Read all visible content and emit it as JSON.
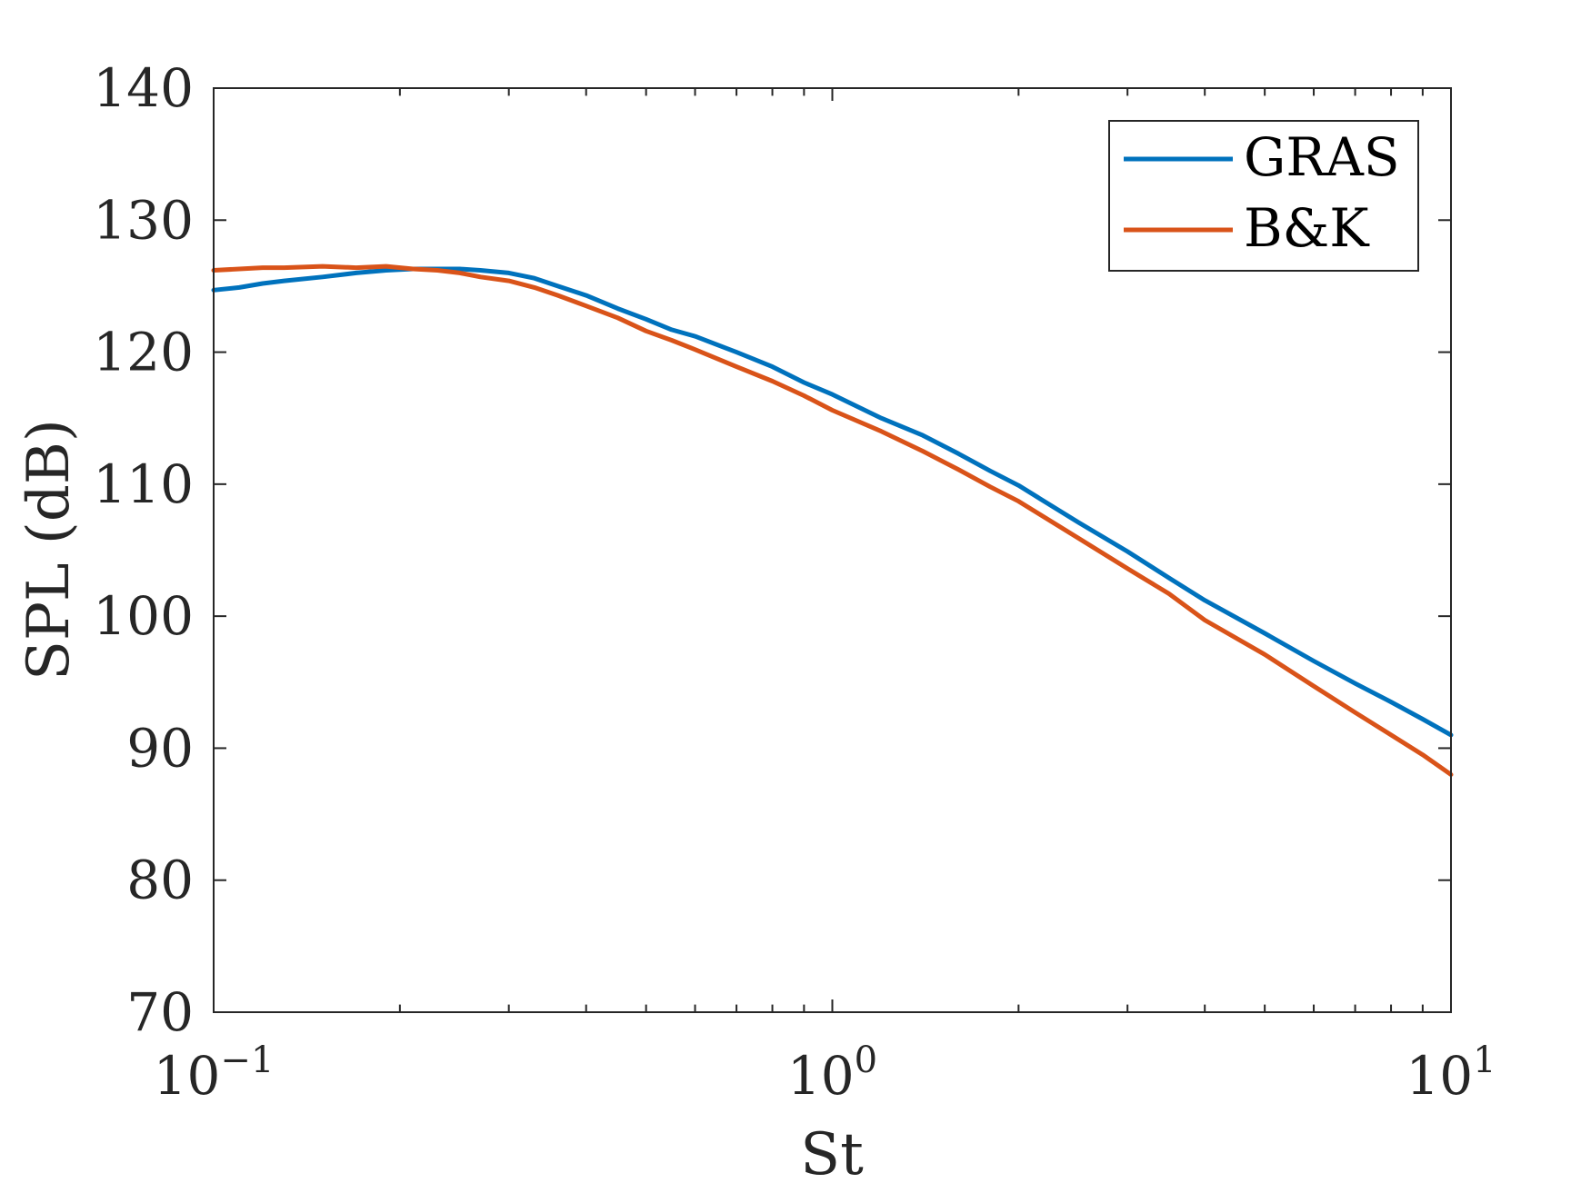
{
  "chart_data": {
    "type": "line",
    "title": "",
    "xlabel": "St",
    "ylabel": "SPL (dB)",
    "xscale": "log",
    "xlim": [
      0.1,
      10
    ],
    "ylim": [
      70,
      140
    ],
    "grid": false,
    "legend_position": "top-right",
    "x_ticks": [
      {
        "value": 0.1,
        "base": "10",
        "exp": "−1"
      },
      {
        "value": 1,
        "base": "10",
        "exp": "0"
      },
      {
        "value": 10,
        "base": "10",
        "exp": "1"
      }
    ],
    "y_ticks": [
      {
        "value": 70,
        "label": "70"
      },
      {
        "value": 80,
        "label": "80"
      },
      {
        "value": 90,
        "label": "90"
      },
      {
        "value": 100,
        "label": "100"
      },
      {
        "value": 110,
        "label": "110"
      },
      {
        "value": 120,
        "label": "120"
      },
      {
        "value": 130,
        "label": "130"
      },
      {
        "value": 140,
        "label": "140"
      }
    ],
    "series": [
      {
        "name": "GRAS",
        "color": "#0072BD",
        "x": [
          0.1,
          0.11,
          0.12,
          0.13,
          0.15,
          0.17,
          0.19,
          0.21,
          0.23,
          0.25,
          0.27,
          0.3,
          0.33,
          0.36,
          0.4,
          0.45,
          0.5,
          0.55,
          0.6,
          0.7,
          0.8,
          0.9,
          1.0,
          1.2,
          1.4,
          1.6,
          1.8,
          2.0,
          2.5,
          3.0,
          3.5,
          4.0,
          5.0,
          6.0,
          7.0,
          8.0,
          9.0,
          10.0
        ],
        "y": [
          124.7,
          124.9,
          125.2,
          125.4,
          125.7,
          126.0,
          126.2,
          126.3,
          126.3,
          126.3,
          126.2,
          126.0,
          125.6,
          125.0,
          124.3,
          123.3,
          122.5,
          121.7,
          121.2,
          120.0,
          118.9,
          117.7,
          116.8,
          115.0,
          113.7,
          112.3,
          111.0,
          109.9,
          107.1,
          104.9,
          102.9,
          101.2,
          98.7,
          96.6,
          94.9,
          93.5,
          92.2,
          91.0
        ]
      },
      {
        "name": "B&K",
        "color": "#D95319",
        "x": [
          0.1,
          0.11,
          0.12,
          0.13,
          0.15,
          0.17,
          0.19,
          0.21,
          0.23,
          0.25,
          0.27,
          0.3,
          0.33,
          0.36,
          0.4,
          0.45,
          0.5,
          0.55,
          0.6,
          0.7,
          0.8,
          0.9,
          1.0,
          1.2,
          1.4,
          1.6,
          1.8,
          2.0,
          2.5,
          3.0,
          3.5,
          4.0,
          5.0,
          6.0,
          7.0,
          8.0,
          9.0,
          10.0
        ],
        "y": [
          126.2,
          126.3,
          126.4,
          126.4,
          126.5,
          126.4,
          126.5,
          126.3,
          126.2,
          126.0,
          125.7,
          125.4,
          124.9,
          124.3,
          123.5,
          122.6,
          121.6,
          120.9,
          120.2,
          118.9,
          117.8,
          116.7,
          115.6,
          114.0,
          112.5,
          111.1,
          109.8,
          108.7,
          105.9,
          103.6,
          101.7,
          99.7,
          97.1,
          94.7,
          92.7,
          91.0,
          89.5,
          88.0
        ]
      }
    ]
  }
}
